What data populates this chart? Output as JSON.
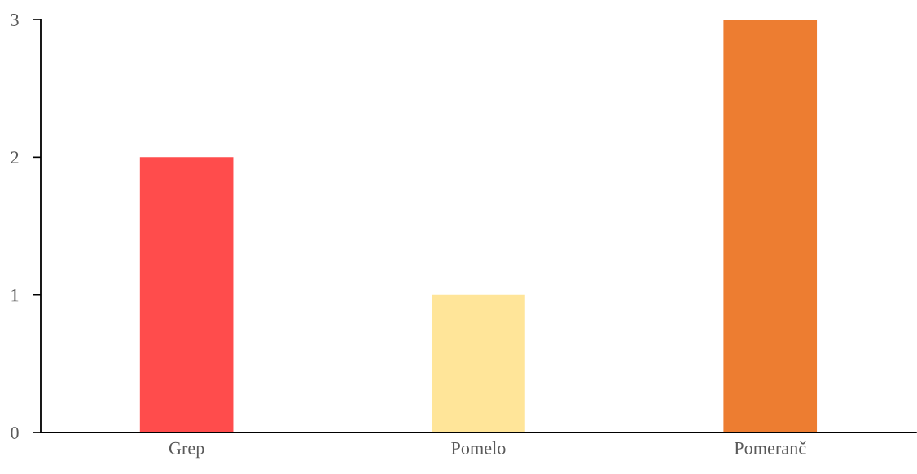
{
  "chart_data": {
    "type": "bar",
    "categories": [
      "Grep",
      "Pomelo",
      "Pomeranč"
    ],
    "values": [
      2,
      1,
      3
    ],
    "colors": [
      "#ff4c4c",
      "#ffe599",
      "#ed7d31"
    ],
    "ylim": [
      0,
      3
    ],
    "yticks": [
      0,
      1,
      2,
      3
    ],
    "grid": false,
    "legend": false
  }
}
